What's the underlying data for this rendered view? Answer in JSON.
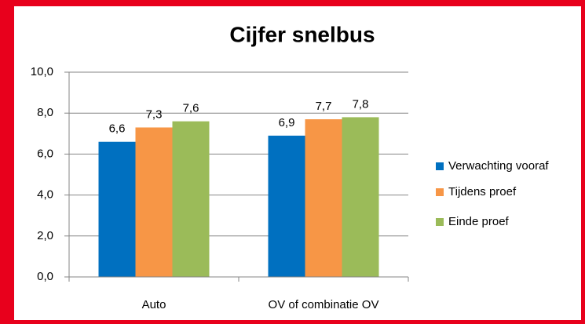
{
  "chart_data": {
    "type": "bar",
    "title": "Cijfer snelbus",
    "categories": [
      "Auto",
      "OV of combinatie OV"
    ],
    "series": [
      {
        "name": "Verwachting vooraf",
        "color": "#0070c0",
        "values": [
          6.6,
          6.9
        ],
        "value_labels": [
          "6,6",
          "6,9"
        ]
      },
      {
        "name": "Tijdens proef",
        "color": "#f79646",
        "values": [
          7.3,
          7.7
        ],
        "value_labels": [
          "7,3",
          "7,7"
        ]
      },
      {
        "name": "Einde proef",
        "color": "#9bbb59",
        "values": [
          7.6,
          7.8
        ],
        "value_labels": [
          "7,6",
          "7,8"
        ]
      }
    ],
    "ylim": [
      0,
      10
    ],
    "yticks": [
      {
        "value": 0,
        "label": "0,0"
      },
      {
        "value": 2,
        "label": "2,0"
      },
      {
        "value": 4,
        "label": "4,0"
      },
      {
        "value": 6,
        "label": "6,0"
      },
      {
        "value": 8,
        "label": "8,0"
      },
      {
        "value": 10,
        "label": "10,0"
      }
    ],
    "grid": true,
    "legend": "right"
  }
}
